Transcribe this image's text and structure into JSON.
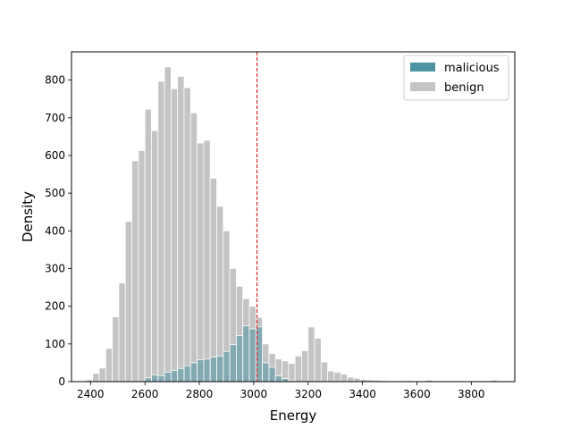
{
  "chart_data": {
    "type": "bar",
    "title": "",
    "xlabel": "Energy",
    "ylabel": "Density",
    "xlim": [
      2330,
      3960
    ],
    "ylim": [
      0,
      875
    ],
    "xticks": [
      2400,
      2600,
      2800,
      3000,
      3200,
      3400,
      3600,
      3800
    ],
    "yticks": [
      0,
      100,
      200,
      300,
      400,
      500,
      600,
      700,
      800
    ],
    "bin_width": 24,
    "threshold_line": {
      "x": 3012,
      "color": "#d62728",
      "style": "dashed"
    },
    "legend": {
      "placement": "top-right"
    },
    "colors": {
      "malicious": "#4e93a3",
      "benign": "#c4c4c4",
      "threshold": "#d62728"
    },
    "series": [
      {
        "name": "benign",
        "color": "#c4c4c4",
        "points": [
          [
            2396,
            5
          ],
          [
            2420,
            22
          ],
          [
            2444,
            36
          ],
          [
            2468,
            88
          ],
          [
            2492,
            172
          ],
          [
            2516,
            262
          ],
          [
            2540,
            425
          ],
          [
            2564,
            586
          ],
          [
            2588,
            613
          ],
          [
            2612,
            723
          ],
          [
            2636,
            666
          ],
          [
            2660,
            797
          ],
          [
            2684,
            835
          ],
          [
            2708,
            777
          ],
          [
            2732,
            810
          ],
          [
            2756,
            780
          ],
          [
            2780,
            713
          ],
          [
            2804,
            633
          ],
          [
            2828,
            640
          ],
          [
            2852,
            540
          ],
          [
            2876,
            465
          ],
          [
            2900,
            400
          ],
          [
            2924,
            300
          ],
          [
            2948,
            253
          ],
          [
            2972,
            220
          ],
          [
            2996,
            200
          ],
          [
            3020,
            170
          ],
          [
            3044,
            100
          ],
          [
            3068,
            75
          ],
          [
            3092,
            60
          ],
          [
            3116,
            55
          ],
          [
            3140,
            48
          ],
          [
            3164,
            68
          ],
          [
            3188,
            82
          ],
          [
            3212,
            145
          ],
          [
            3236,
            115
          ],
          [
            3260,
            52
          ],
          [
            3284,
            28
          ],
          [
            3308,
            25
          ],
          [
            3332,
            20
          ],
          [
            3356,
            12
          ],
          [
            3380,
            9
          ],
          [
            3404,
            6
          ],
          [
            3428,
            5
          ],
          [
            3452,
            4
          ],
          [
            3476,
            3
          ],
          [
            3500,
            2
          ],
          [
            3524,
            2
          ],
          [
            3548,
            2
          ],
          [
            3572,
            3
          ],
          [
            3596,
            2
          ],
          [
            3620,
            2
          ],
          [
            3644,
            4
          ],
          [
            3668,
            2
          ],
          [
            3692,
            1
          ],
          [
            3716,
            1
          ],
          [
            3740,
            1
          ],
          [
            3764,
            2
          ],
          [
            3788,
            1
          ],
          [
            3812,
            1
          ],
          [
            3836,
            1
          ],
          [
            3860,
            2
          ],
          [
            3884,
            4
          ]
        ]
      },
      {
        "name": "malicious",
        "color": "#4e93a3",
        "points": [
          [
            2612,
            10
          ],
          [
            2636,
            18
          ],
          [
            2660,
            16
          ],
          [
            2684,
            25
          ],
          [
            2708,
            30
          ],
          [
            2732,
            35
          ],
          [
            2756,
            42
          ],
          [
            2780,
            50
          ],
          [
            2804,
            58
          ],
          [
            2828,
            60
          ],
          [
            2852,
            65
          ],
          [
            2876,
            68
          ],
          [
            2900,
            80
          ],
          [
            2924,
            98
          ],
          [
            2948,
            122
          ],
          [
            2972,
            148
          ],
          [
            2996,
            140
          ],
          [
            3020,
            145
          ],
          [
            3044,
            50
          ],
          [
            3068,
            38
          ],
          [
            3092,
            15
          ],
          [
            3116,
            8
          ],
          [
            3140,
            3
          ]
        ]
      }
    ]
  }
}
